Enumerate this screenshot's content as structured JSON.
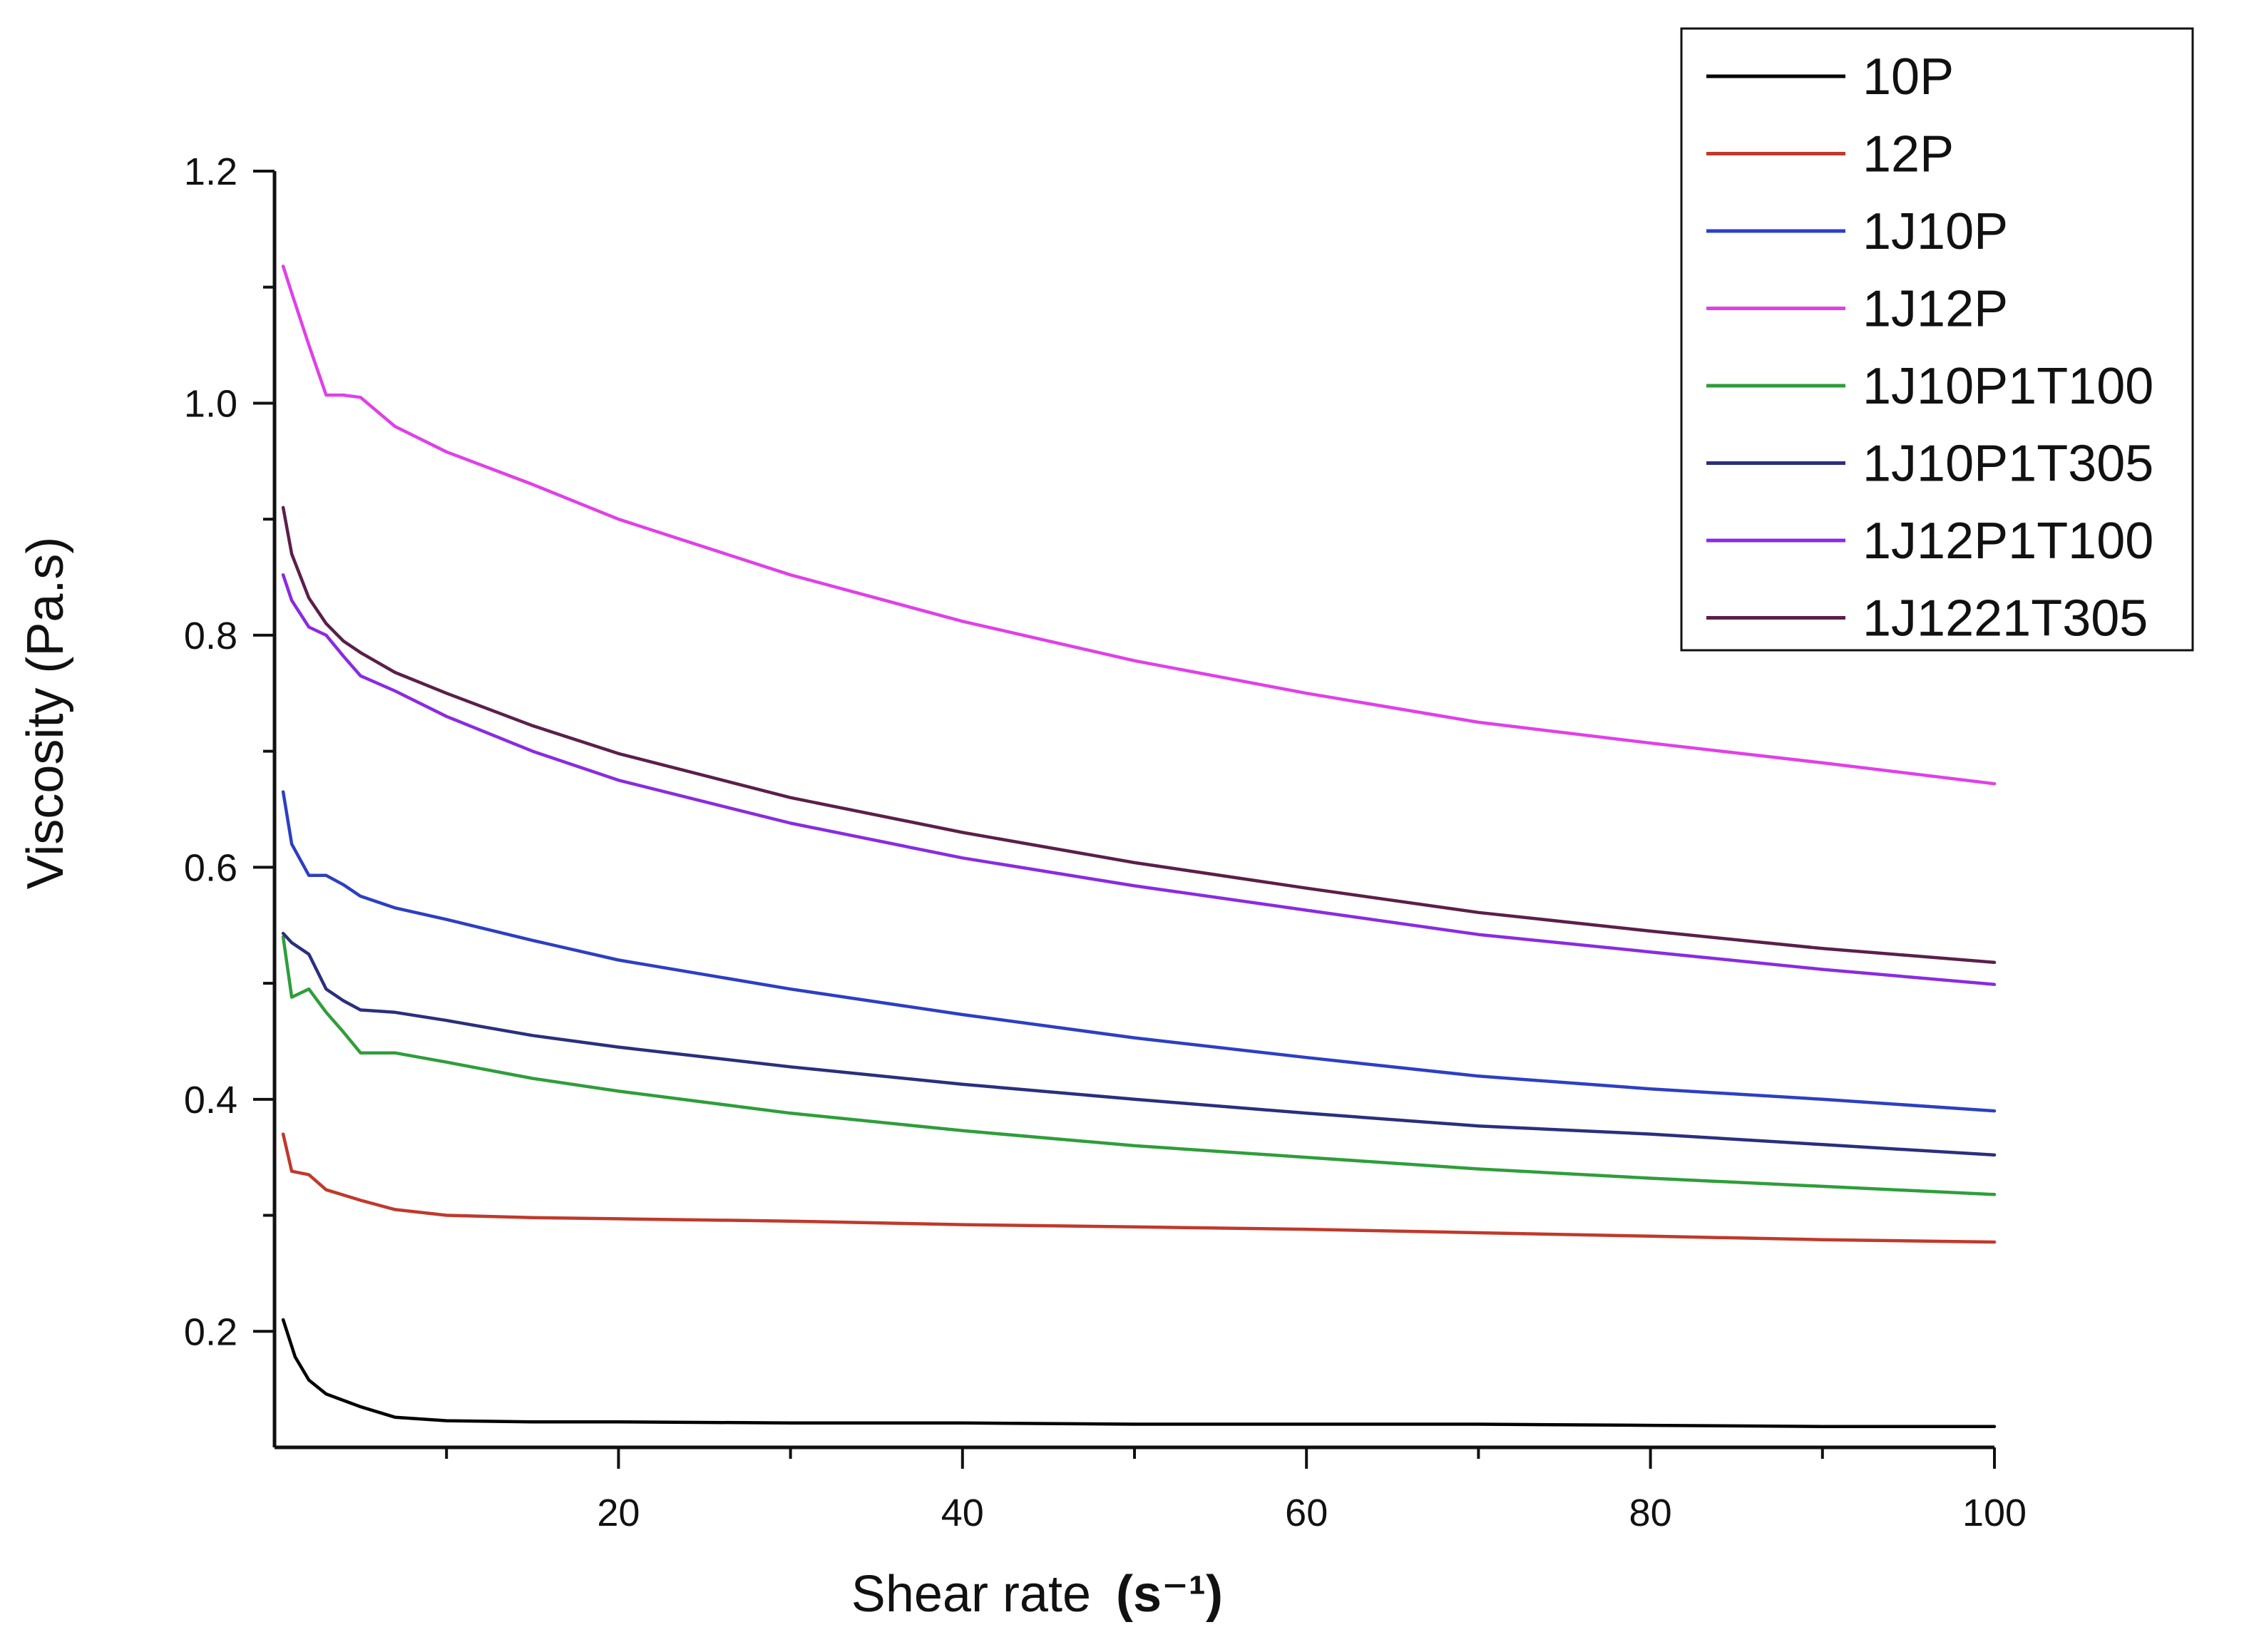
{
  "chart_data": {
    "type": "line",
    "title": "",
    "xlabel": "Shear rate",
    "xlabel_unit": "(s⁻¹)",
    "ylabel": "Viscosity (Pa.s)",
    "xlim": [
      0,
      100
    ],
    "ylim": [
      0.1,
      1.2
    ],
    "xticks": [
      20,
      40,
      60,
      80,
      100
    ],
    "xticks_minor": [
      10,
      30,
      50,
      70,
      90
    ],
    "yticks": [
      0.2,
      0.4,
      0.6,
      0.8,
      1.0,
      1.2
    ],
    "ytick_labels": [
      "0.2",
      "0.4",
      "0.6",
      "0.8",
      "1.0",
      "1.2"
    ],
    "yticks_minor": [
      0.3,
      0.5,
      0.7,
      0.9,
      1.1
    ],
    "grid": false,
    "legend_position": "top-right",
    "series": [
      {
        "name": "10P",
        "color": "#000000",
        "x": [
          0.5,
          1.2,
          2,
          3,
          5,
          7,
          10,
          15,
          20,
          30,
          40,
          50,
          60,
          70,
          80,
          90,
          100
        ],
        "y": [
          0.21,
          0.178,
          0.158,
          0.146,
          0.135,
          0.126,
          0.123,
          0.122,
          0.122,
          0.121,
          0.121,
          0.12,
          0.12,
          0.12,
          0.119,
          0.118,
          0.118
        ]
      },
      {
        "name": "12P",
        "color": "#c0392b",
        "x": [
          0.5,
          1,
          2,
          3,
          5,
          7,
          10,
          15,
          20,
          30,
          40,
          50,
          60,
          70,
          80,
          90,
          100
        ],
        "y": [
          0.37,
          0.338,
          0.335,
          0.322,
          0.313,
          0.305,
          0.3,
          0.298,
          0.297,
          0.295,
          0.292,
          0.29,
          0.288,
          0.285,
          0.282,
          0.279,
          0.277
        ]
      },
      {
        "name": "1J10P",
        "color": "#2c3fc4",
        "x": [
          0.5,
          1,
          2,
          3,
          4,
          5,
          7,
          10,
          15,
          20,
          30,
          40,
          50,
          60,
          70,
          80,
          90,
          100
        ],
        "y": [
          0.665,
          0.62,
          0.593,
          0.593,
          0.585,
          0.575,
          0.565,
          0.555,
          0.537,
          0.52,
          0.495,
          0.473,
          0.453,
          0.436,
          0.42,
          0.409,
          0.4,
          0.39
        ]
      },
      {
        "name": "1J12P",
        "color": "#e040e8",
        "x": [
          0.5,
          1,
          2,
          3,
          4,
          5,
          7,
          10,
          15,
          20,
          30,
          40,
          50,
          60,
          70,
          80,
          90,
          100
        ],
        "y": [
          1.118,
          1.095,
          1.05,
          1.007,
          1.007,
          1.005,
          0.98,
          0.958,
          0.93,
          0.9,
          0.852,
          0.812,
          0.778,
          0.75,
          0.725,
          0.707,
          0.69,
          0.672
        ]
      },
      {
        "name": "1J10P1T100",
        "color": "#2e9e3a",
        "x": [
          0.5,
          1,
          2,
          3,
          4,
          5,
          7,
          10,
          15,
          20,
          30,
          40,
          50,
          60,
          70,
          80,
          90,
          100
        ],
        "y": [
          0.54,
          0.488,
          0.495,
          0.475,
          0.458,
          0.44,
          0.44,
          0.432,
          0.418,
          0.407,
          0.388,
          0.373,
          0.36,
          0.35,
          0.34,
          0.332,
          0.325,
          0.318
        ]
      },
      {
        "name": "1J10P1T305",
        "color": "#2a2f7d",
        "x": [
          0.5,
          1,
          2,
          3,
          4,
          5,
          7,
          10,
          15,
          20,
          30,
          40,
          50,
          60,
          70,
          80,
          90,
          100
        ],
        "y": [
          0.543,
          0.535,
          0.525,
          0.495,
          0.485,
          0.477,
          0.475,
          0.468,
          0.455,
          0.445,
          0.428,
          0.413,
          0.4,
          0.388,
          0.377,
          0.37,
          0.361,
          0.352
        ]
      },
      {
        "name": "1J12P1T100",
        "color": "#8a2be2",
        "x": [
          0.5,
          1,
          2,
          3,
          4,
          5,
          7,
          10,
          15,
          20,
          30,
          40,
          50,
          60,
          70,
          80,
          90,
          100
        ],
        "y": [
          0.852,
          0.83,
          0.807,
          0.8,
          0.782,
          0.765,
          0.752,
          0.73,
          0.7,
          0.675,
          0.638,
          0.608,
          0.584,
          0.563,
          0.542,
          0.527,
          0.512,
          0.499
        ]
      },
      {
        "name": "1J1221T305",
        "color": "#5b1f4a",
        "x": [
          0.5,
          1,
          2,
          3,
          4,
          5,
          7,
          10,
          15,
          20,
          30,
          40,
          50,
          60,
          70,
          80,
          90,
          100
        ],
        "y": [
          0.91,
          0.87,
          0.832,
          0.81,
          0.795,
          0.785,
          0.768,
          0.75,
          0.722,
          0.698,
          0.66,
          0.63,
          0.604,
          0.582,
          0.561,
          0.545,
          0.53,
          0.518
        ]
      }
    ]
  }
}
